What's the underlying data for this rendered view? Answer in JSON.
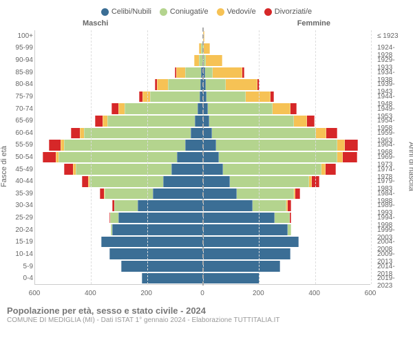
{
  "colors": {
    "celibi": "#3b6e95",
    "coniugati": "#b4d48e",
    "vedovi": "#f6c255",
    "divorziati": "#d62728",
    "grid": "#dddddd",
    "centerline": "#aaaaaa",
    "text": "#666666",
    "background": "#ffffff"
  },
  "legend": [
    {
      "label": "Celibi/Nubili",
      "colorKey": "celibi"
    },
    {
      "label": "Coniugati/e",
      "colorKey": "coniugati"
    },
    {
      "label": "Vedovi/e",
      "colorKey": "vedovi"
    },
    {
      "label": "Divorziati/e",
      "colorKey": "divorziati"
    }
  ],
  "genders": {
    "m": "Maschi",
    "f": "Femmine"
  },
  "axis": {
    "left_title": "Fasce di età",
    "right_title": "Anni di nascita",
    "xmax": 600,
    "xticks": [
      600,
      400,
      200,
      0,
      200,
      400,
      600
    ]
  },
  "rows": [
    {
      "age": "100+",
      "birth": "≤ 1923",
      "m": {
        "cel": 0,
        "con": 0,
        "ved": 0,
        "div": 0
      },
      "f": {
        "cel": 0,
        "con": 0,
        "ved": 3,
        "div": 0
      }
    },
    {
      "age": "95-99",
      "birth": "1924-1928",
      "m": {
        "cel": 0,
        "con": 3,
        "ved": 5,
        "div": 0
      },
      "f": {
        "cel": 0,
        "con": 2,
        "ved": 20,
        "div": 0
      }
    },
    {
      "age": "90-94",
      "birth": "1929-1933",
      "m": {
        "cel": 0,
        "con": 10,
        "ved": 15,
        "div": 0
      },
      "f": {
        "cel": 2,
        "con": 5,
        "ved": 55,
        "div": 0
      }
    },
    {
      "age": "85-89",
      "birth": "1934-1938",
      "m": {
        "cel": 3,
        "con": 55,
        "ved": 30,
        "div": 2
      },
      "f": {
        "cel": 5,
        "con": 25,
        "ved": 105,
        "div": 3
      }
    },
    {
      "age": "80-84",
      "birth": "1939-1943",
      "m": {
        "cel": 5,
        "con": 115,
        "ved": 35,
        "div": 5
      },
      "f": {
        "cel": 8,
        "con": 70,
        "ved": 110,
        "div": 5
      }
    },
    {
      "age": "75-79",
      "birth": "1944-1948",
      "m": {
        "cel": 8,
        "con": 175,
        "ved": 25,
        "div": 10
      },
      "f": {
        "cel": 10,
        "con": 140,
        "ved": 85,
        "div": 10
      }
    },
    {
      "age": "70-74",
      "birth": "1949-1953",
      "m": {
        "cel": 15,
        "con": 260,
        "ved": 20,
        "div": 20
      },
      "f": {
        "cel": 15,
        "con": 230,
        "ved": 60,
        "div": 20
      }
    },
    {
      "age": "65-69",
      "birth": "1954-1958",
      "m": {
        "cel": 25,
        "con": 310,
        "ved": 15,
        "div": 25
      },
      "f": {
        "cel": 20,
        "con": 300,
        "ved": 45,
        "div": 25
      }
    },
    {
      "age": "60-64",
      "birth": "1959-1963",
      "m": {
        "cel": 40,
        "con": 380,
        "ved": 12,
        "div": 30
      },
      "f": {
        "cel": 30,
        "con": 370,
        "ved": 35,
        "div": 35
      }
    },
    {
      "age": "55-59",
      "birth": "1964-1968",
      "m": {
        "cel": 60,
        "con": 430,
        "ved": 10,
        "div": 40
      },
      "f": {
        "cel": 45,
        "con": 430,
        "ved": 25,
        "div": 45
      }
    },
    {
      "age": "50-54",
      "birth": "1969-1973",
      "m": {
        "cel": 90,
        "con": 420,
        "ved": 8,
        "div": 45
      },
      "f": {
        "cel": 55,
        "con": 420,
        "ved": 18,
        "div": 50
      }
    },
    {
      "age": "45-49",
      "birth": "1974-1978",
      "m": {
        "cel": 110,
        "con": 340,
        "ved": 5,
        "div": 30
      },
      "f": {
        "cel": 70,
        "con": 350,
        "ved": 12,
        "div": 35
      }
    },
    {
      "age": "40-44",
      "birth": "1979-1983",
      "m": {
        "cel": 140,
        "con": 260,
        "ved": 3,
        "div": 20
      },
      "f": {
        "cel": 95,
        "con": 280,
        "ved": 8,
        "div": 25
      }
    },
    {
      "age": "35-39",
      "birth": "1984-1988",
      "m": {
        "cel": 175,
        "con": 170,
        "ved": 1,
        "div": 12
      },
      "f": {
        "cel": 120,
        "con": 200,
        "ved": 4,
        "div": 15
      }
    },
    {
      "age": "30-34",
      "birth": "1989-1993",
      "m": {
        "cel": 230,
        "con": 80,
        "ved": 0,
        "div": 5
      },
      "f": {
        "cel": 175,
        "con": 120,
        "ved": 2,
        "div": 8
      }
    },
    {
      "age": "25-29",
      "birth": "1994-1998",
      "m": {
        "cel": 300,
        "con": 25,
        "ved": 0,
        "div": 1
      },
      "f": {
        "cel": 255,
        "con": 50,
        "ved": 0,
        "div": 3
      }
    },
    {
      "age": "20-24",
      "birth": "1999-2003",
      "m": {
        "cel": 320,
        "con": 3,
        "ved": 0,
        "div": 0
      },
      "f": {
        "cel": 300,
        "con": 12,
        "ved": 0,
        "div": 0
      }
    },
    {
      "age": "15-19",
      "birth": "2004-2008",
      "m": {
        "cel": 360,
        "con": 0,
        "ved": 0,
        "div": 0
      },
      "f": {
        "cel": 340,
        "con": 0,
        "ved": 0,
        "div": 0
      }
    },
    {
      "age": "10-14",
      "birth": "2009-2013",
      "m": {
        "cel": 330,
        "con": 0,
        "ved": 0,
        "div": 0
      },
      "f": {
        "cel": 310,
        "con": 0,
        "ved": 0,
        "div": 0
      }
    },
    {
      "age": "5-9",
      "birth": "2014-2018",
      "m": {
        "cel": 290,
        "con": 0,
        "ved": 0,
        "div": 0
      },
      "f": {
        "cel": 275,
        "con": 0,
        "ved": 0,
        "div": 0
      }
    },
    {
      "age": "0-4",
      "birth": "2019-2023",
      "m": {
        "cel": 215,
        "con": 0,
        "ved": 0,
        "div": 0
      },
      "f": {
        "cel": 200,
        "con": 0,
        "ved": 0,
        "div": 0
      }
    }
  ],
  "footer": {
    "title": "Popolazione per età, sesso e stato civile - 2024",
    "subtitle": "COMUNE DI MEDIGLIA (MI) - Dati ISTAT 1° gennaio 2024 - Elaborazione TUTTITALIA.IT"
  }
}
